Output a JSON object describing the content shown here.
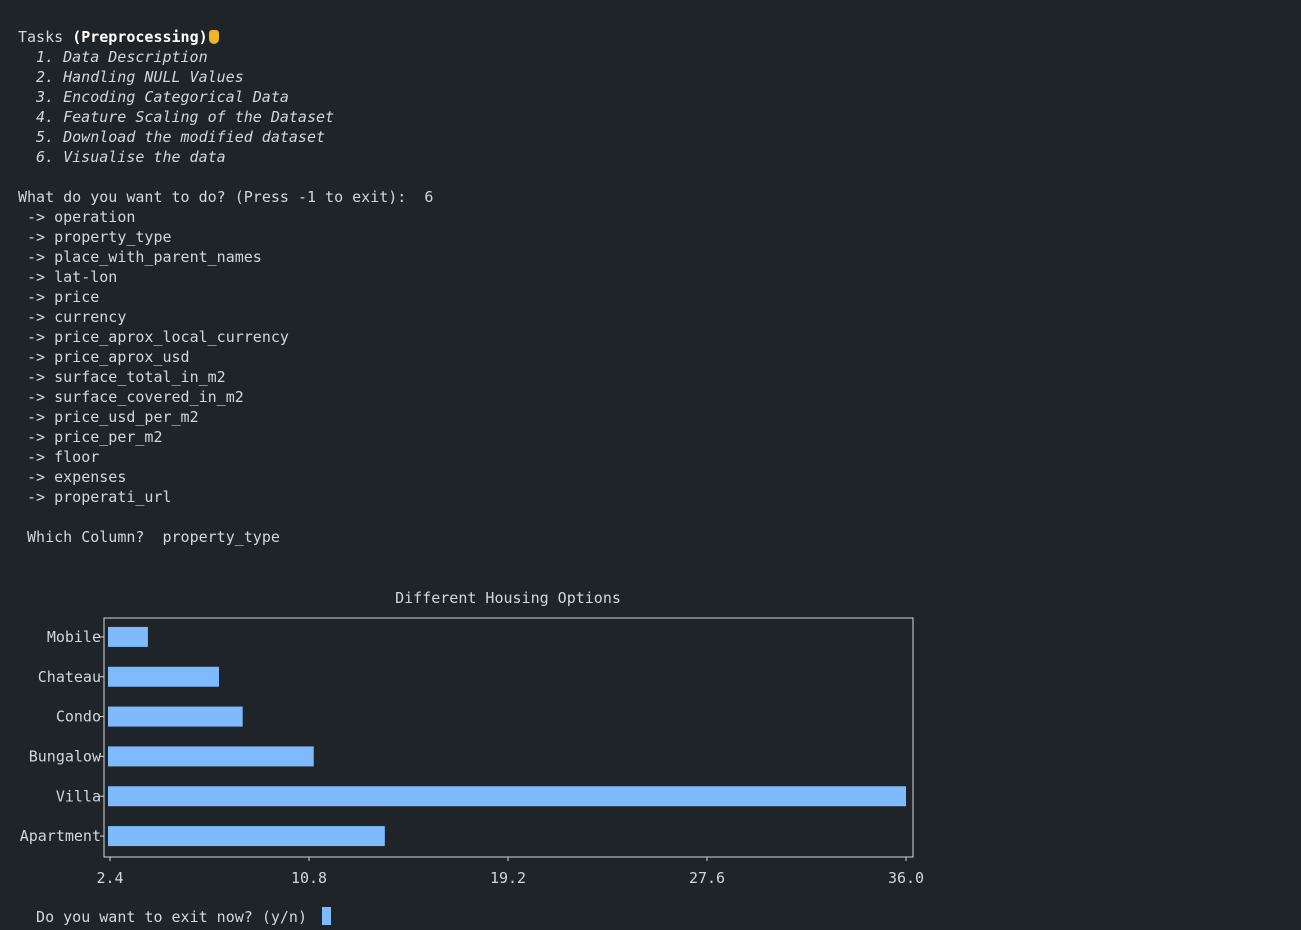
{
  "menu": {
    "header_prefix": "Tasks ",
    "header_bold": "(Preprocessing)",
    "tasks": [
      " 1. Data Description",
      " 2. Handling NULL Values",
      " 3. Encoding Categorical Data",
      " 4. Feature Scaling of the Dataset",
      " 5. Download the modified dataset",
      " 6. Visualise the data"
    ]
  },
  "prompt": {
    "question": "What do you want to do? (Press -1 to exit):  ",
    "answer": "6"
  },
  "columns": [
    " -> operation",
    " -> property_type",
    " -> place_with_parent_names",
    " -> lat-lon",
    " -> price",
    " -> currency",
    " -> price_aprox_local_currency",
    " -> price_aprox_usd",
    " -> surface_total_in_m2",
    " -> surface_covered_in_m2",
    " -> price_usd_per_m2",
    " -> price_per_m2",
    " -> floor",
    " -> expenses",
    " -> properati_url"
  ],
  "column_prompt": {
    "question": " Which Column?  ",
    "answer": "property_type"
  },
  "chart_data": {
    "type": "bar",
    "orientation": "horizontal",
    "title": "Different Housing Options",
    "categories": [
      "Mobile",
      "Chateau",
      "Condo",
      "Bungalow",
      "Villa",
      "Apartment"
    ],
    "values": [
      4,
      7,
      8,
      11,
      36,
      14
    ],
    "xlim": [
      2.4,
      36.0
    ],
    "xticks": [
      "2.4",
      "10.8",
      "19.2",
      "27.6",
      "36.0"
    ],
    "bar_color": "#7fbaff",
    "axis_color": "#d4d7da"
  },
  "exit_prompt": {
    "question": "  Do you want to exit now? (y/n) "
  }
}
